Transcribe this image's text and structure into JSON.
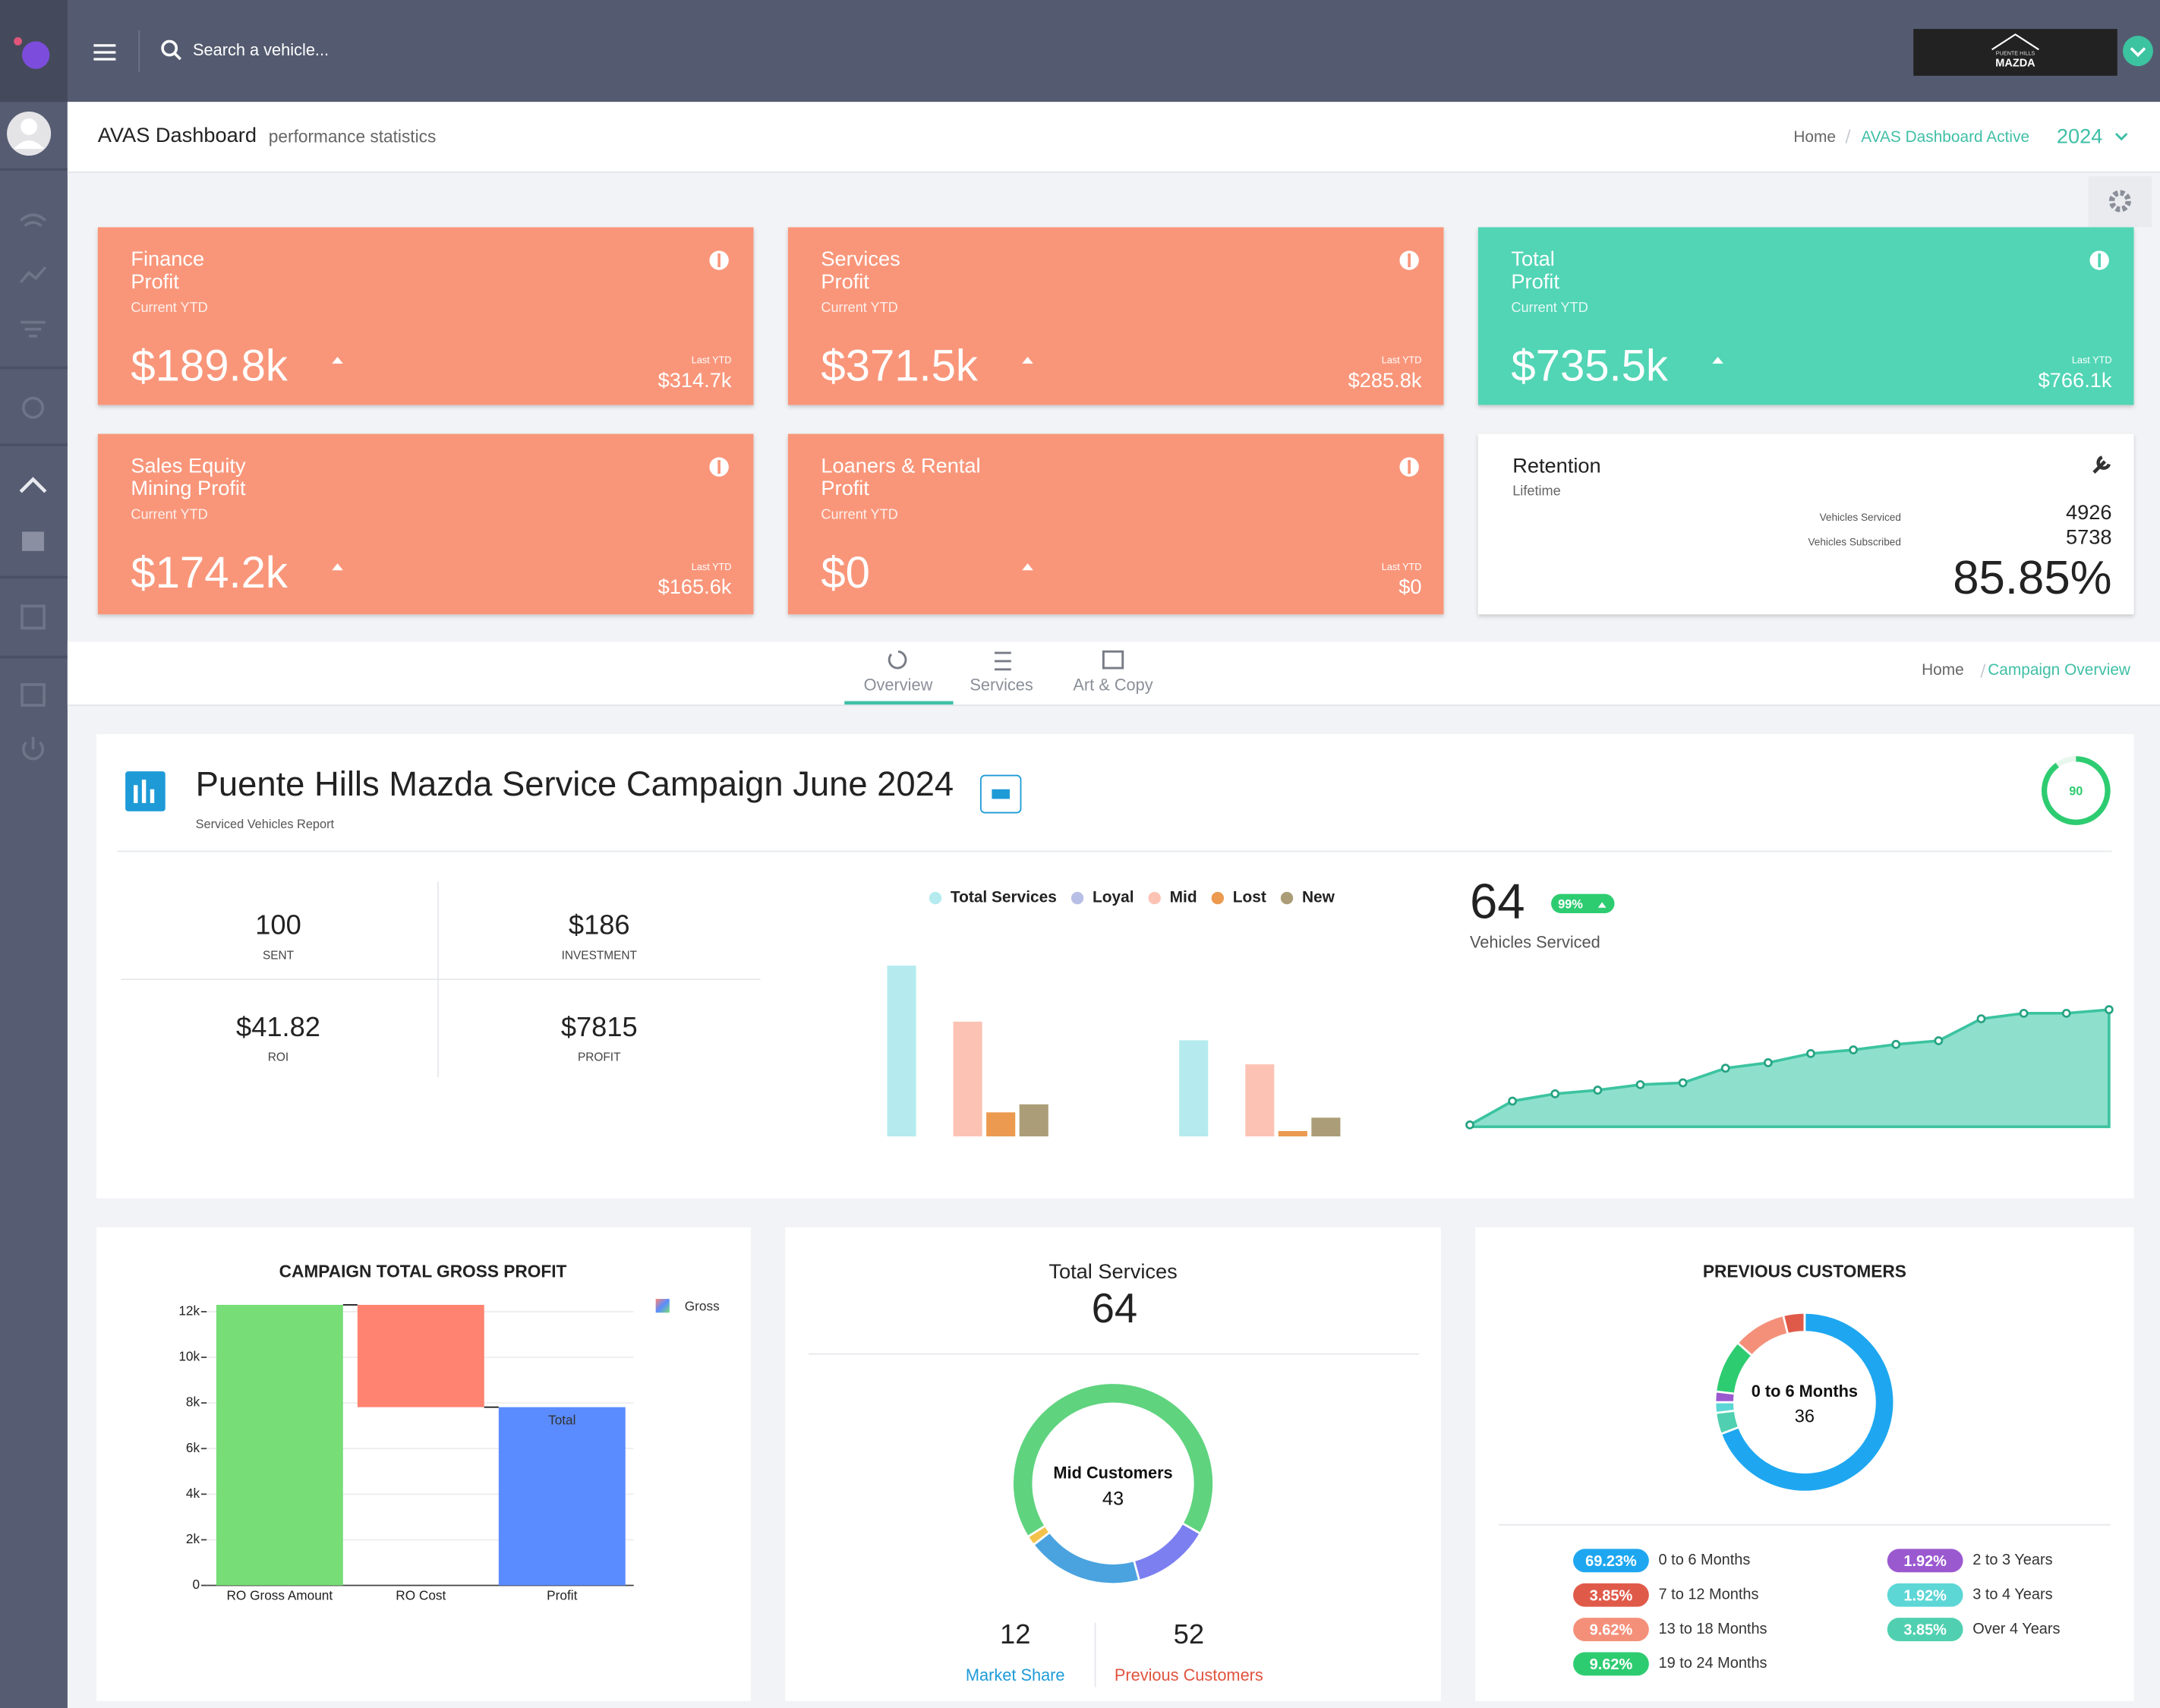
{
  "topbar": {
    "search_placeholder": "Search a vehicle...",
    "logo_lines": [
      "PUENTE HILLS",
      "MAZDA"
    ]
  },
  "header": {
    "title": "AVAS Dashboard",
    "subtitle": "performance statistics",
    "breadcrumb": [
      "Home",
      "AVAS Dashboard Active"
    ],
    "year": "2024"
  },
  "cards": [
    {
      "title": [
        "Finance",
        "Profit"
      ],
      "period": "Current YTD",
      "value": "$189.8k",
      "last_label": "Last YTD",
      "last_value": "$314.7k",
      "color": "#f9967a"
    },
    {
      "title": [
        "Services",
        "Profit"
      ],
      "period": "Current YTD",
      "value": "$371.5k",
      "last_label": "Last YTD",
      "last_value": "$285.8k",
      "color": "#f9967a"
    },
    {
      "title": [
        "Total",
        "Profit"
      ],
      "period": "Current YTD",
      "value": "$735.5k",
      "last_label": "Last YTD",
      "last_value": "$766.1k",
      "color": "#51d5b5"
    },
    {
      "title": [
        "Sales Equity",
        "Mining Profit"
      ],
      "period": "Current YTD",
      "value": "$174.2k",
      "last_label": "Last YTD",
      "last_value": "$165.6k",
      "color": "#f9967a"
    },
    {
      "title": [
        "Loaners & Rental",
        "Profit"
      ],
      "period": "Current YTD",
      "value": "$0",
      "last_label": "Last YTD",
      "last_value": "$0",
      "color": "#f9967a"
    }
  ],
  "retention": {
    "title": "Retention",
    "period": "Lifetime",
    "rows": [
      {
        "label": "Vehicles Serviced",
        "value": "4926"
      },
      {
        "label": "Vehicles Subscribed",
        "value": "5738"
      }
    ],
    "rate": "85.85%"
  },
  "tabs": {
    "items": [
      "Overview",
      "Services",
      "Art & Copy"
    ],
    "active": 0,
    "breadcrumb": [
      "Home",
      "Campaign Overview"
    ]
  },
  "campaign": {
    "title": "Puente Hills Mazda Service Campaign June 2024",
    "subtitle": "Serviced Vehicles Report",
    "score": 90,
    "stats": [
      {
        "value": "100",
        "label": "SENT"
      },
      {
        "value": "$186",
        "label": "INVESTMENT"
      },
      {
        "value": "$41.82",
        "label": "ROI"
      },
      {
        "value": "$7815",
        "label": "PROFIT"
      }
    ]
  },
  "service_mix_chart": {
    "type": "bar",
    "categories": [
      null,
      null
    ],
    "series": [
      {
        "name": "Total Services",
        "color": "#b5ebee",
        "values": [
          64,
          36
        ]
      },
      {
        "name": "Loyal",
        "color": "#b8bfe6",
        "values": [
          null,
          null
        ]
      },
      {
        "name": "Mid",
        "color": "#fcc3b5",
        "values": [
          43,
          27
        ]
      },
      {
        "name": "Lost",
        "color": "#eb9a4f",
        "values": [
          9,
          2
        ]
      },
      {
        "name": "New",
        "color": "#ab9d77",
        "values": [
          12,
          7
        ]
      }
    ]
  },
  "vehicles_chart": {
    "type": "area",
    "value": "64",
    "badge": "99%",
    "label": "Vehicles Serviced",
    "color": "#3cc3a0",
    "fill": "#8ee0cc",
    "values": [
      1,
      14,
      18,
      20,
      23,
      24,
      32,
      35,
      40,
      42,
      45,
      47,
      59,
      62,
      62,
      64
    ]
  },
  "gross_profit_chart": {
    "type": "waterfall",
    "title": "CAMPAIGN TOTAL GROSS PROFIT",
    "legend": "Gross",
    "categories": [
      "RO Gross Amount",
      "RO Cost",
      "Profit"
    ],
    "values": [
      12300,
      -4485,
      7815
    ],
    "measure": [
      "relative",
      "relative",
      "total"
    ],
    "total_label": "Total",
    "colors": {
      "increase": "#77dd77",
      "decrease": "#ff8370",
      "total": "#5b8cff"
    },
    "ylim": [
      0,
      12500
    ],
    "yticks": [
      0,
      {
        "value": 2000,
        "label": "2k"
      },
      {
        "value": 4000,
        "label": "4k"
      },
      {
        "value": 6000,
        "label": "6k"
      },
      {
        "value": 8000,
        "label": "8k"
      },
      {
        "value": 10000,
        "label": "10k"
      },
      {
        "value": 12000,
        "label": "12k"
      }
    ],
    "grid": true
  },
  "total_services": {
    "type": "donut",
    "title": "Total Services",
    "value": "64",
    "segments": [
      {
        "name": "Mid Customers",
        "color": "#5fd37e",
        "value": 43
      },
      {
        "color": "#7b7ff0",
        "value": 8
      },
      {
        "color": "#4aa3df",
        "value": 12
      },
      {
        "color": "#f3c24b",
        "value": 1
      }
    ],
    "footer": [
      {
        "value": "12",
        "label": "Market Share",
        "color": "#1e9bd7"
      },
      {
        "value": "52",
        "label": "Previous Customers",
        "color": "#e0533f"
      }
    ]
  },
  "previous_customers": {
    "type": "donut",
    "title": "PREVIOUS CUSTOMERS",
    "categories": [
      "0 to 6 Months",
      "7 to 12 Months",
      "13 to 18 Months",
      "19 to 24 Months",
      "2 to 3 Years",
      "3 to 4 Years",
      "Over 4 Years"
    ],
    "values": [
      69.23,
      3.85,
      9.62,
      9.62,
      1.92,
      1.92,
      3.85
    ],
    "value_labels": [
      "69.23%",
      "3.85%",
      "9.62%",
      "9.62%",
      "1.92%",
      "1.92%",
      "3.85%"
    ],
    "colors": [
      "#1ea7f0",
      "#e05a4a",
      "#f4907a",
      "#2ecc71",
      "#9b59d0",
      "#5dd6d6",
      "#50d0b0"
    ],
    "center_value": 36
  }
}
